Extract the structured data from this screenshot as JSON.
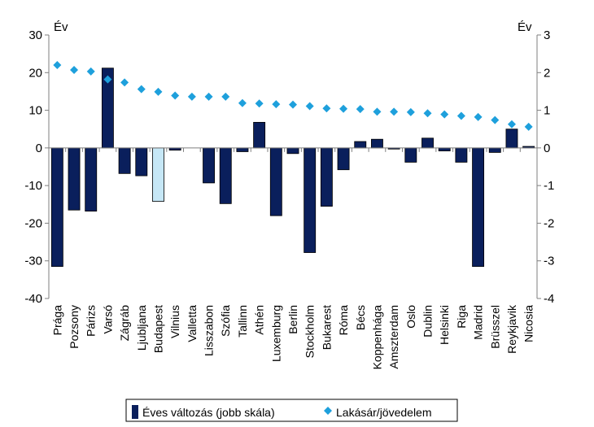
{
  "chart_data": {
    "type": "bar+scatter",
    "left_axis": {
      "unit_label": "Év",
      "ylim": [
        -40,
        30
      ],
      "ticks": [
        30,
        20,
        10,
        0,
        -10,
        -20,
        -30,
        -40
      ]
    },
    "right_axis": {
      "unit_label": "Év",
      "ylim": [
        -4,
        3
      ],
      "ticks": [
        3,
        2,
        1,
        0,
        -1,
        -2,
        -3,
        -4
      ]
    },
    "categories": [
      "Prága",
      "Pozsony",
      "Párizs",
      "Varsó",
      "Zágráb",
      "Ljubljana",
      "Budapest",
      "Vilnius",
      "Valletta",
      "Lisszabon",
      "Szófia",
      "Tallinn",
      "Athén",
      "Luxemburg",
      "Berlin",
      "Stockholm",
      "Bukarest",
      "Róma",
      "Bécs",
      "Koppenhága",
      "Amszterdam",
      "Oslo",
      "Dublin",
      "Helsinki",
      "Riga",
      "Madrid",
      "Brüsszel",
      "Reykjavik",
      "Nicosia"
    ],
    "highlight_category": "Budapest",
    "colors": {
      "bar": "#0a1f5c",
      "highlight_bar": "#c6e7f6",
      "marker": "#1ea0dc",
      "axis": "#7f7f7f"
    },
    "series": [
      {
        "name": "Éves változás (jobb skála)",
        "kind": "bar",
        "axis": "right",
        "values": [
          -3.15,
          -1.65,
          -1.68,
          2.12,
          -0.68,
          -0.74,
          -1.42,
          -0.06,
          0.0,
          -0.93,
          -1.48,
          -0.1,
          0.68,
          -1.8,
          -0.15,
          -2.78,
          -1.55,
          -0.58,
          0.17,
          0.23,
          -0.03,
          -0.38,
          0.26,
          -0.08,
          -0.38,
          -3.15,
          -0.12,
          0.5,
          0.04
        ]
      },
      {
        "name": "Lakásár/jövedelem",
        "kind": "scatter",
        "marker": "diamond",
        "axis": "left",
        "values": [
          22,
          20.7,
          20.3,
          18.2,
          17.4,
          15.6,
          14.9,
          13.9,
          13.6,
          13.6,
          13.6,
          11.9,
          11.8,
          11.6,
          11.5,
          11.1,
          10.5,
          10.4,
          10.3,
          9.6,
          9.6,
          9.5,
          9.2,
          8.9,
          8.5,
          8.2,
          7.4,
          6.3,
          5.6
        ]
      }
    ],
    "legend": {
      "position": "bottom",
      "entries": [
        "Éves változás (jobb skála)",
        "Lakásár/jövedelem"
      ]
    }
  }
}
